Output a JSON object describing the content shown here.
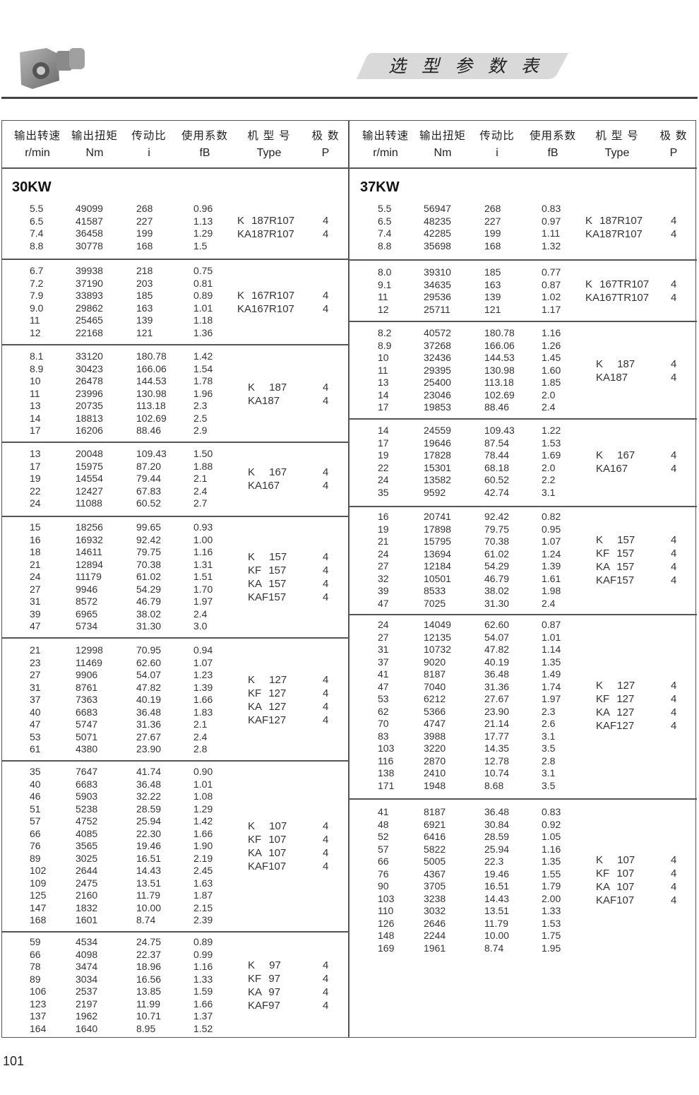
{
  "header": {
    "title": "选 型 参 数 表",
    "logo_icon": "gear-reducer-image"
  },
  "columns": [
    {
      "cn": "输出转速",
      "unit": "r/min"
    },
    {
      "cn": "输出扭矩",
      "unit": "Nm"
    },
    {
      "cn": "传动比",
      "unit": "i"
    },
    {
      "cn": "使用系数",
      "unit": "fB"
    },
    {
      "cn": "机 型 号",
      "unit": "Type"
    },
    {
      "cn": "极  数",
      "unit": "P"
    }
  ],
  "tables": [
    {
      "power": "30KW",
      "groups": [
        {
          "rows": [
            [
              "5.5",
              "49099",
              "268",
              "0.96"
            ],
            [
              "6.5",
              "41587",
              "227",
              "1.13"
            ],
            [
              "7.4",
              "36458",
              "199",
              "1.29"
            ],
            [
              "8.8",
              "30778",
              "168",
              "1.5"
            ]
          ],
          "types": [
            [
              "K 187R107",
              "4"
            ],
            [
              "KA187R107",
              "4"
            ]
          ]
        },
        {
          "rows": [
            [
              "6.7",
              "39938",
              "218",
              "0.75"
            ],
            [
              "7.2",
              "37190",
              "203",
              "0.81"
            ],
            [
              "7.9",
              "33893",
              "185",
              "0.89"
            ],
            [
              "9.0",
              "29862",
              "163",
              "1.01"
            ],
            [
              "11",
              "25465",
              "139",
              "1.18"
            ],
            [
              "12",
              "22168",
              "121",
              "1.36"
            ]
          ],
          "types": [
            [
              "K 167R107",
              "4"
            ],
            [
              "KA167R107",
              "4"
            ]
          ]
        },
        {
          "rows": [
            [
              "8.1",
              "33120",
              "180.78",
              "1.42"
            ],
            [
              "8.9",
              "30423",
              "166.06",
              "1.54"
            ],
            [
              "10",
              "26478",
              "144.53",
              "1.78"
            ],
            [
              "11",
              "23996",
              "130.98",
              "1.96"
            ],
            [
              "13",
              "20735",
              "113.18",
              "2.3"
            ],
            [
              "14",
              "18813",
              "102.69",
              "2.5"
            ],
            [
              "17",
              "16206",
              "88.46",
              "2.9"
            ]
          ],
          "types": [
            [
              "K 187",
              "4"
            ],
            [
              "KA187",
              "4"
            ]
          ]
        },
        {
          "rows": [
            [
              "13",
              "20048",
              "109.43",
              "1.50"
            ],
            [
              "17",
              "15975",
              "87.20",
              "1.88"
            ],
            [
              "19",
              "14554",
              "79.44",
              "2.1"
            ],
            [
              "22",
              "12427",
              "67.83",
              "2.4"
            ],
            [
              "24",
              "11088",
              "60.52",
              "2.7"
            ]
          ],
          "types": [
            [
              "K 167",
              "4"
            ],
            [
              "KA167",
              "4"
            ]
          ]
        },
        {
          "rows": [
            [
              "15",
              "18256",
              "99.65",
              "0.93"
            ],
            [
              "16",
              "16932",
              "92.42",
              "1.00"
            ],
            [
              "18",
              "14611",
              "79.75",
              "1.16"
            ],
            [
              "21",
              "12894",
              "70.38",
              "1.31"
            ],
            [
              "24",
              "11179",
              "61.02",
              "1.51"
            ],
            [
              "27",
              "9946",
              "54.29",
              "1.70"
            ],
            [
              "31",
              "8572",
              "46.79",
              "1.97"
            ],
            [
              "39",
              "6965",
              "38.02",
              "2.4"
            ],
            [
              "47",
              "5734",
              "31.30",
              "3.0"
            ]
          ],
          "types": [
            [
              "K 157",
              "4"
            ],
            [
              "KF 157",
              "4"
            ],
            [
              "KA 157",
              "4"
            ],
            [
              "KAF157",
              "4"
            ]
          ]
        },
        {
          "rows": [
            [
              "21",
              "12998",
              "70.95",
              "0.94"
            ],
            [
              "23",
              "11469",
              "62.60",
              "1.07"
            ],
            [
              "27",
              "9906",
              "54.07",
              "1.23"
            ],
            [
              "31",
              "8761",
              "47.82",
              "1.39"
            ],
            [
              "37",
              "7363",
              "40.19",
              "1.66"
            ],
            [
              "40",
              "6683",
              "36.48",
              "1.83"
            ],
            [
              "47",
              "5747",
              "31.36",
              "2.1"
            ],
            [
              "53",
              "5071",
              "27.67",
              "2.4"
            ],
            [
              "61",
              "4380",
              "23.90",
              "2.8"
            ]
          ],
          "types": [
            [
              "K 127",
              "4"
            ],
            [
              "KF 127",
              "4"
            ],
            [
              "KA 127",
              "4"
            ],
            [
              "KAF127",
              "4"
            ]
          ]
        },
        {
          "rows": [
            [
              "35",
              "7647",
              "41.74",
              "0.90"
            ],
            [
              "40",
              "6683",
              "36.48",
              "1.01"
            ],
            [
              "46",
              "5903",
              "32.22",
              "1.08"
            ],
            [
              "51",
              "5238",
              "28.59",
              "1.29"
            ],
            [
              "57",
              "4752",
              "25.94",
              "1.42"
            ],
            [
              "66",
              "4085",
              "22.30",
              "1.66"
            ],
            [
              "76",
              "3565",
              "19.46",
              "1.90"
            ],
            [
              "89",
              "3025",
              "16.51",
              "2.19"
            ],
            [
              "102",
              "2644",
              "14.43",
              "2.45"
            ],
            [
              "109",
              "2475",
              "13.51",
              "1.63"
            ],
            [
              "125",
              "2160",
              "11.79",
              "1.87"
            ],
            [
              "147",
              "1832",
              "10.00",
              "2.15"
            ],
            [
              "168",
              "1601",
              "8.74",
              "2.39"
            ]
          ],
          "types": [
            [
              "K 107",
              "4"
            ],
            [
              "KF 107",
              "4"
            ],
            [
              "KA 107",
              "4"
            ],
            [
              "KAF107",
              "4"
            ]
          ]
        },
        {
          "rows": [
            [
              "59",
              "4534",
              "24.75",
              "0.89"
            ],
            [
              "66",
              "4098",
              "22.37",
              "0.99"
            ],
            [
              "78",
              "3474",
              "18.96",
              "1.16"
            ],
            [
              "89",
              "3034",
              "16.56",
              "1.33"
            ],
            [
              "106",
              "2537",
              "13.85",
              "1.59"
            ],
            [
              "123",
              "2197",
              "11.99",
              "1.66"
            ],
            [
              "137",
              "1962",
              "10.71",
              "1.37"
            ],
            [
              "164",
              "1640",
              "8.95",
              "1.52"
            ]
          ],
          "types": [
            [
              "K 97",
              "4"
            ],
            [
              "KF 97",
              "4"
            ],
            [
              "KA 97",
              "4"
            ],
            [
              "KAF97",
              "4"
            ]
          ]
        }
      ]
    },
    {
      "power": "37KW",
      "groups": [
        {
          "rows": [
            [
              "5.5",
              "56947",
              "268",
              "0.83"
            ],
            [
              "6.5",
              "48235",
              "227",
              "0.97"
            ],
            [
              "7.4",
              "42285",
              "199",
              "1.11"
            ],
            [
              "8.8",
              "35698",
              "168",
              "1.32"
            ]
          ],
          "types": [
            [
              "K 187R107",
              "4"
            ],
            [
              "KA187R107",
              "4"
            ]
          ]
        },
        {
          "rows": [
            [
              "8.0",
              "39310",
              "185",
              "0.77"
            ],
            [
              "9.1",
              "34635",
              "163",
              "0.87"
            ],
            [
              "11",
              "29536",
              "139",
              "1.02"
            ],
            [
              "12",
              "25711",
              "121",
              "1.17"
            ]
          ],
          "types": [
            [
              "K 167TR107",
              "4"
            ],
            [
              "KA167TR107",
              "4"
            ]
          ]
        },
        {
          "rows": [
            [
              "8.2",
              "40572",
              "180.78",
              "1.16"
            ],
            [
              "8.9",
              "37268",
              "166.06",
              "1.26"
            ],
            [
              "10",
              "32436",
              "144.53",
              "1.45"
            ],
            [
              "11",
              "29395",
              "130.98",
              "1.60"
            ],
            [
              "13",
              "25400",
              "113.18",
              "1.85"
            ],
            [
              "14",
              "23046",
              "102.69",
              "2.0"
            ],
            [
              "17",
              "19853",
              "88.46",
              "2.4"
            ]
          ],
          "types": [
            [
              "K 187",
              "4"
            ],
            [
              "KA187",
              "4"
            ]
          ]
        },
        {
          "rows": [
            [
              "14",
              "24559",
              "109.43",
              "1.22"
            ],
            [
              "17",
              "19646",
              "87.54",
              "1.53"
            ],
            [
              "19",
              "17828",
              "78.44",
              "1.69"
            ],
            [
              "22",
              "15301",
              "68.18",
              "2.0"
            ],
            [
              "24",
              "13582",
              "60.52",
              "2.2"
            ],
            [
              "35",
              "9592",
              "42.74",
              "3.1"
            ]
          ],
          "types": [
            [
              "K 167",
              "4"
            ],
            [
              "KA167",
              "4"
            ]
          ]
        },
        {
          "rows": [
            [
              "16",
              "20741",
              "92.42",
              "0.82"
            ],
            [
              "19",
              "17898",
              "79.75",
              "0.95"
            ],
            [
              "21",
              "15795",
              "70.38",
              "1.07"
            ],
            [
              "24",
              "13694",
              "61.02",
              "1.24"
            ],
            [
              "27",
              "12184",
              "54.29",
              "1.39"
            ],
            [
              "32",
              "10501",
              "46.79",
              "1.61"
            ],
            [
              "39",
              "8533",
              "38.02",
              "1.98"
            ],
            [
              "47",
              "7025",
              "31.30",
              "2.4"
            ]
          ],
          "types": [
            [
              "K 157",
              "4"
            ],
            [
              "KF 157",
              "4"
            ],
            [
              "KA 157",
              "4"
            ],
            [
              "KAF157",
              "4"
            ]
          ]
        },
        {
          "rows": [
            [
              "24",
              "14049",
              "62.60",
              "0.87"
            ],
            [
              "27",
              "12135",
              "54.07",
              "1.01"
            ],
            [
              "31",
              "10732",
              "47.82",
              "1.14"
            ],
            [
              "37",
              "9020",
              "40.19",
              "1.35"
            ],
            [
              "41",
              "8187",
              "36.48",
              "1.49"
            ],
            [
              "47",
              "7040",
              "31.36",
              "1.74"
            ],
            [
              "53",
              "6212",
              "27.67",
              "1.97"
            ],
            [
              "62",
              "5366",
              "23.90",
              "2.3"
            ],
            [
              "70",
              "4747",
              "21.14",
              "2.6"
            ],
            [
              "83",
              "3988",
              "17.77",
              "3.1"
            ],
            [
              "103",
              "3220",
              "14.35",
              "3.5"
            ],
            [
              "116",
              "2870",
              "12.78",
              "2.8"
            ],
            [
              "138",
              "2410",
              "10.74",
              "3.1"
            ],
            [
              "171",
              "1948",
              "8.68",
              "3.5"
            ]
          ],
          "types": [
            [
              "K 127",
              "4"
            ],
            [
              "KF 127",
              "4"
            ],
            [
              "KA 127",
              "4"
            ],
            [
              "KAF127",
              "4"
            ]
          ]
        },
        {
          "rows": [
            [
              "41",
              "8187",
              "36.48",
              "0.83"
            ],
            [
              "48",
              "6921",
              "30.84",
              "0.92"
            ],
            [
              "52",
              "6416",
              "28.59",
              "1.05"
            ],
            [
              "57",
              "5822",
              "25.94",
              "1.16"
            ],
            [
              "66",
              "5005",
              "22.3",
              "1.35"
            ],
            [
              "76",
              "4367",
              "19.46",
              "1.55"
            ],
            [
              "90",
              "3705",
              "16.51",
              "1.79"
            ],
            [
              "103",
              "3238",
              "14.43",
              "2.00"
            ],
            [
              "110",
              "3032",
              "13.51",
              "1.33"
            ],
            [
              "126",
              "2646",
              "11.79",
              "1.53"
            ],
            [
              "148",
              "2244",
              "10.00",
              "1.75"
            ],
            [
              "169",
              "1961",
              "8.74",
              "1.95"
            ]
          ],
          "types": [
            [
              "K 107",
              "4"
            ],
            [
              "KF 107",
              "4"
            ],
            [
              "KA 107",
              "4"
            ],
            [
              "KAF107",
              "4"
            ]
          ]
        }
      ]
    }
  ],
  "page_number": "101"
}
